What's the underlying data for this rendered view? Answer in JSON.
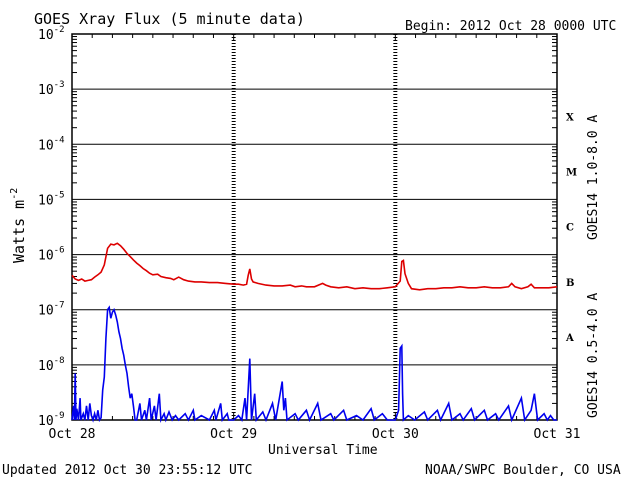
{
  "chart_data": {
    "type": "line",
    "title": "GOES Xray Flux (5 minute data)",
    "begin_label": "Begin:  2012 Oct 28 0000 UTC",
    "xlabel": "Universal Time",
    "ylabel_text": "Watts m",
    "ylabel_exp": "-2",
    "footer_left": "Updated 2012 Oct 30 23:55:12 UTC",
    "footer_right": "NOAA/SWPC Boulder, CO USA",
    "y_scale": "log",
    "ylim": [
      1e-09,
      0.01
    ],
    "xlim_days": [
      0,
      3
    ],
    "x_ticks": [
      {
        "day": 0,
        "label": "Oct 28"
      },
      {
        "day": 1,
        "label": "Oct 29"
      },
      {
        "day": 2,
        "label": "Oct 30"
      },
      {
        "day": 3,
        "label": "Oct 31"
      }
    ],
    "y_ticks": [
      {
        "base": "10",
        "exp": "-9",
        "value": 1e-09
      },
      {
        "base": "10",
        "exp": "-8",
        "value": 1e-08
      },
      {
        "base": "10",
        "exp": "-7",
        "value": 1e-07
      },
      {
        "base": "10",
        "exp": "-6",
        "value": 1e-06
      },
      {
        "base": "10",
        "exp": "-5",
        "value": 1e-05
      },
      {
        "base": "10",
        "exp": "-4",
        "value": 0.0001
      },
      {
        "base": "10",
        "exp": "-3",
        "value": 0.001
      },
      {
        "base": "10",
        "exp": "-2",
        "value": 0.01
      }
    ],
    "flare_classes": [
      {
        "label": "X",
        "value": 0.00032
      },
      {
        "label": "M",
        "value": 3.2e-05
      },
      {
        "label": "C",
        "value": 3.2e-06
      },
      {
        "label": "B",
        "value": 3.2e-07
      },
      {
        "label": "A",
        "value": 3.2e-08
      }
    ],
    "series": [
      {
        "name": "GOES14 1.0-8.0 A",
        "color": "#dd0000",
        "points": [
          [
            0.0,
            4.2e-07
          ],
          [
            0.02,
            3.6e-07
          ],
          [
            0.04,
            3.4e-07
          ],
          [
            0.06,
            3.6e-07
          ],
          [
            0.08,
            3.3e-07
          ],
          [
            0.1,
            3.4e-07
          ],
          [
            0.12,
            3.5e-07
          ],
          [
            0.14,
            3.9e-07
          ],
          [
            0.16,
            4.3e-07
          ],
          [
            0.18,
            4.8e-07
          ],
          [
            0.2,
            6.5e-07
          ],
          [
            0.22,
            1.3e-06
          ],
          [
            0.24,
            1.55e-06
          ],
          [
            0.26,
            1.5e-06
          ],
          [
            0.28,
            1.6e-06
          ],
          [
            0.3,
            1.45e-06
          ],
          [
            0.32,
            1.25e-06
          ],
          [
            0.34,
            1.05e-06
          ],
          [
            0.36,
            9.2e-07
          ],
          [
            0.38,
            8e-07
          ],
          [
            0.4,
            7e-07
          ],
          [
            0.42,
            6.3e-07
          ],
          [
            0.44,
            5.6e-07
          ],
          [
            0.46,
            5.1e-07
          ],
          [
            0.48,
            4.6e-07
          ],
          [
            0.5,
            4.3e-07
          ],
          [
            0.53,
            4.4e-07
          ],
          [
            0.55,
            4e-07
          ],
          [
            0.58,
            3.8e-07
          ],
          [
            0.61,
            3.7e-07
          ],
          [
            0.63,
            3.5e-07
          ],
          [
            0.66,
            3.9e-07
          ],
          [
            0.69,
            3.5e-07
          ],
          [
            0.72,
            3.3e-07
          ],
          [
            0.76,
            3.2e-07
          ],
          [
            0.8,
            3.2e-07
          ],
          [
            0.85,
            3.1e-07
          ],
          [
            0.9,
            3.1e-07
          ],
          [
            0.95,
            3e-07
          ],
          [
            1.0,
            2.9e-07
          ],
          [
            1.03,
            2.9e-07
          ],
          [
            1.06,
            2.8e-07
          ],
          [
            1.08,
            2.9e-07
          ],
          [
            1.09,
            4.2e-07
          ],
          [
            1.1,
            5.5e-07
          ],
          [
            1.11,
            3.6e-07
          ],
          [
            1.12,
            3.2e-07
          ],
          [
            1.15,
            3e-07
          ],
          [
            1.2,
            2.8e-07
          ],
          [
            1.25,
            2.7e-07
          ],
          [
            1.3,
            2.7e-07
          ],
          [
            1.35,
            2.8e-07
          ],
          [
            1.38,
            2.6e-07
          ],
          [
            1.42,
            2.7e-07
          ],
          [
            1.45,
            2.6e-07
          ],
          [
            1.5,
            2.6e-07
          ],
          [
            1.55,
            3e-07
          ],
          [
            1.57,
            2.8e-07
          ],
          [
            1.6,
            2.6e-07
          ],
          [
            1.65,
            2.5e-07
          ],
          [
            1.7,
            2.6e-07
          ],
          [
            1.75,
            2.4e-07
          ],
          [
            1.8,
            2.5e-07
          ],
          [
            1.85,
            2.4e-07
          ],
          [
            1.9,
            2.4e-07
          ],
          [
            1.95,
            2.5e-07
          ],
          [
            2.0,
            2.6e-07
          ],
          [
            2.03,
            3.3e-07
          ],
          [
            2.04,
            7.5e-07
          ],
          [
            2.05,
            7.8e-07
          ],
          [
            2.06,
            4.5e-07
          ],
          [
            2.08,
            3e-07
          ],
          [
            2.1,
            2.4e-07
          ],
          [
            2.15,
            2.3e-07
          ],
          [
            2.2,
            2.4e-07
          ],
          [
            2.25,
            2.4e-07
          ],
          [
            2.3,
            2.5e-07
          ],
          [
            2.35,
            2.5e-07
          ],
          [
            2.4,
            2.6e-07
          ],
          [
            2.45,
            2.5e-07
          ],
          [
            2.5,
            2.5e-07
          ],
          [
            2.55,
            2.6e-07
          ],
          [
            2.6,
            2.5e-07
          ],
          [
            2.65,
            2.5e-07
          ],
          [
            2.7,
            2.6e-07
          ],
          [
            2.72,
            3e-07
          ],
          [
            2.74,
            2.6e-07
          ],
          [
            2.78,
            2.4e-07
          ],
          [
            2.82,
            2.6e-07
          ],
          [
            2.84,
            2.9e-07
          ],
          [
            2.86,
            2.5e-07
          ],
          [
            2.9,
            2.5e-07
          ],
          [
            2.95,
            2.5e-07
          ],
          [
            3.0,
            2.6e-07
          ]
        ]
      },
      {
        "name": "GOES14 0.5-4.0 A",
        "color": "#0000ee",
        "points": [
          [
            0.0,
            1e-09
          ],
          [
            0.01,
            1.8e-09
          ],
          [
            0.015,
            1e-09
          ],
          [
            0.02,
            7e-09
          ],
          [
            0.025,
            1e-09
          ],
          [
            0.03,
            1.6e-09
          ],
          [
            0.04,
            1e-09
          ],
          [
            0.05,
            2.5e-09
          ],
          [
            0.055,
            1e-09
          ],
          [
            0.07,
            1.3e-09
          ],
          [
            0.08,
            1e-09
          ],
          [
            0.09,
            1.8e-09
          ],
          [
            0.1,
            1e-09
          ],
          [
            0.11,
            2e-09
          ],
          [
            0.12,
            1.2e-09
          ],
          [
            0.13,
            1e-09
          ],
          [
            0.14,
            1.3e-09
          ],
          [
            0.15,
            1e-09
          ],
          [
            0.16,
            1.5e-09
          ],
          [
            0.17,
            1e-09
          ],
          [
            0.18,
            1.1e-09
          ],
          [
            0.19,
            3.5e-09
          ],
          [
            0.2,
            6e-09
          ],
          [
            0.21,
            3e-08
          ],
          [
            0.22,
            1e-07
          ],
          [
            0.23,
            1.1e-07
          ],
          [
            0.24,
            7e-08
          ],
          [
            0.25,
            9e-08
          ],
          [
            0.26,
            1e-07
          ],
          [
            0.27,
            8e-08
          ],
          [
            0.28,
            6e-08
          ],
          [
            0.29,
            4e-08
          ],
          [
            0.3,
            3e-08
          ],
          [
            0.31,
            2e-08
          ],
          [
            0.32,
            1.5e-08
          ],
          [
            0.33,
            1e-08
          ],
          [
            0.34,
            7e-09
          ],
          [
            0.35,
            4e-09
          ],
          [
            0.36,
            2.5e-09
          ],
          [
            0.37,
            3e-09
          ],
          [
            0.38,
            1.8e-09
          ],
          [
            0.39,
            1e-09
          ],
          [
            0.4,
            1e-09
          ],
          [
            0.42,
            2e-09
          ],
          [
            0.43,
            1e-09
          ],
          [
            0.45,
            1.5e-09
          ],
          [
            0.46,
            1e-09
          ],
          [
            0.48,
            2.5e-09
          ],
          [
            0.49,
            1e-09
          ],
          [
            0.51,
            1.8e-09
          ],
          [
            0.52,
            1e-09
          ],
          [
            0.54,
            3e-09
          ],
          [
            0.55,
            1e-09
          ],
          [
            0.57,
            1.3e-09
          ],
          [
            0.58,
            1e-09
          ],
          [
            0.6,
            1.4e-09
          ],
          [
            0.62,
            1e-09
          ],
          [
            0.64,
            1.2e-09
          ],
          [
            0.66,
            1e-09
          ],
          [
            0.7,
            1.3e-09
          ],
          [
            0.72,
            1e-09
          ],
          [
            0.75,
            1.5e-09
          ],
          [
            0.76,
            1e-09
          ],
          [
            0.8,
            1.2e-09
          ],
          [
            0.85,
            1e-09
          ],
          [
            0.88,
            1.5e-09
          ],
          [
            0.89,
            1e-09
          ],
          [
            0.92,
            2e-09
          ],
          [
            0.93,
            1e-09
          ],
          [
            0.96,
            1.3e-09
          ],
          [
            0.97,
            1e-09
          ],
          [
            1.0,
            1e-09
          ],
          [
            1.03,
            1.2e-09
          ],
          [
            1.05,
            1e-09
          ],
          [
            1.07,
            2.5e-09
          ],
          [
            1.08,
            1e-09
          ],
          [
            1.1,
            1.3e-08
          ],
          [
            1.11,
            1e-09
          ],
          [
            1.13,
            3e-09
          ],
          [
            1.14,
            1e-09
          ],
          [
            1.18,
            1.4e-09
          ],
          [
            1.2,
            1e-09
          ],
          [
            1.24,
            2e-09
          ],
          [
            1.26,
            1e-09
          ],
          [
            1.3,
            5e-09
          ],
          [
            1.31,
            1.5e-09
          ],
          [
            1.32,
            2.5e-09
          ],
          [
            1.33,
            1e-09
          ],
          [
            1.38,
            1.3e-09
          ],
          [
            1.4,
            1e-09
          ],
          [
            1.45,
            1.5e-09
          ],
          [
            1.47,
            1e-09
          ],
          [
            1.52,
            2e-09
          ],
          [
            1.54,
            1e-09
          ],
          [
            1.6,
            1.3e-09
          ],
          [
            1.62,
            1e-09
          ],
          [
            1.68,
            1.5e-09
          ],
          [
            1.7,
            1e-09
          ],
          [
            1.76,
            1.2e-09
          ],
          [
            1.8,
            1e-09
          ],
          [
            1.85,
            1.6e-09
          ],
          [
            1.87,
            1e-09
          ],
          [
            1.92,
            1.3e-09
          ],
          [
            1.95,
            1e-09
          ],
          [
            2.0,
            1e-09
          ],
          [
            2.02,
            1.5e-09
          ],
          [
            2.03,
            2e-08
          ],
          [
            2.04,
            2.2e-08
          ],
          [
            2.045,
            3e-09
          ],
          [
            2.05,
            1e-09
          ],
          [
            2.08,
            1.2e-09
          ],
          [
            2.12,
            1e-09
          ],
          [
            2.18,
            1.4e-09
          ],
          [
            2.2,
            1e-09
          ],
          [
            2.26,
            1.5e-09
          ],
          [
            2.28,
            1e-09
          ],
          [
            2.33,
            2e-09
          ],
          [
            2.35,
            1e-09
          ],
          [
            2.4,
            1.3e-09
          ],
          [
            2.42,
            1e-09
          ],
          [
            2.47,
            1.6e-09
          ],
          [
            2.49,
            1e-09
          ],
          [
            2.55,
            1.5e-09
          ],
          [
            2.57,
            1e-09
          ],
          [
            2.62,
            1.3e-09
          ],
          [
            2.64,
            1e-09
          ],
          [
            2.7,
            1.8e-09
          ],
          [
            2.72,
            1e-09
          ],
          [
            2.78,
            2.5e-09
          ],
          [
            2.8,
            1e-09
          ],
          [
            2.84,
            1.5e-09
          ],
          [
            2.86,
            3e-09
          ],
          [
            2.88,
            1e-09
          ],
          [
            2.92,
            1.3e-09
          ],
          [
            2.94,
            1e-09
          ],
          [
            2.96,
            1.2e-09
          ],
          [
            2.98,
            1e-09
          ],
          [
            3.0,
            1e-09
          ]
        ]
      }
    ]
  }
}
